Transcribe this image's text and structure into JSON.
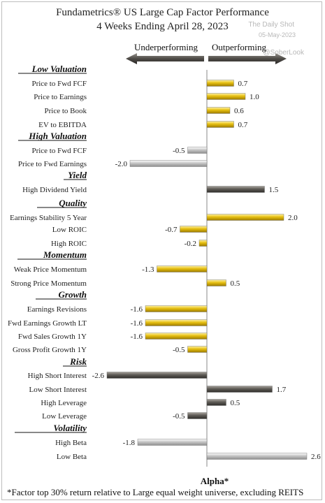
{
  "header": {
    "title_line1": "Fundametrics® US Large Cap Factor Performance",
    "title_line2": "4 Weeks Ending April 28, 2023"
  },
  "watermark": {
    "source": "The Daily Shot",
    "date": "05-May-2023",
    "handle": "@SoberLook"
  },
  "legend": {
    "left": "Underperforming",
    "right": "Outperforming"
  },
  "footnote": "*Factor top 30% return relative to Large equal weight universe, excluding REITS",
  "chart_data": {
    "type": "bar",
    "orientation": "horizontal",
    "xlabel": "Alpha*",
    "xlim": [
      -2.6,
      2.6
    ],
    "colors": {
      "gold": "#e0b400",
      "dark": "#5e5b56",
      "light": "#bdbdbd"
    },
    "groups": [
      {
        "name": "Low Valuation",
        "items": [
          {
            "label": "Price to Fwd FCF",
            "value": 0.7,
            "color": "gold"
          },
          {
            "label": "Price to Earnings",
            "value": 1.0,
            "color": "gold"
          },
          {
            "label": "Price to Book",
            "value": 0.6,
            "color": "gold"
          },
          {
            "label": "EV to EBITDA",
            "value": 0.7,
            "color": "gold"
          }
        ]
      },
      {
        "name": "High Valuation",
        "items": [
          {
            "label": "Price to Fwd FCF",
            "value": -0.5,
            "color": "light"
          },
          {
            "label": "Price to Fwd Earnings",
            "value": -2.0,
            "color": "light"
          }
        ]
      },
      {
        "name": "Yield",
        "items": [
          {
            "label": "High Dividend Yield",
            "value": 1.5,
            "color": "dark"
          }
        ]
      },
      {
        "name": "Quality",
        "items": [
          {
            "label": "Earnings Stability 5 Year",
            "value": 2.0,
            "color": "gold"
          },
          {
            "label": "Low ROIC",
            "value": -0.7,
            "color": "gold"
          },
          {
            "label": "High ROIC",
            "value": -0.2,
            "color": "gold"
          }
        ]
      },
      {
        "name": "Momentum",
        "items": [
          {
            "label": "Weak Price Momentum",
            "value": -1.3,
            "color": "gold"
          },
          {
            "label": "Strong Price Momentum",
            "value": 0.5,
            "color": "gold"
          }
        ]
      },
      {
        "name": "Growth",
        "items": [
          {
            "label": "Earnings Revisions",
            "value": -1.6,
            "color": "gold"
          },
          {
            "label": "Fwd Earnings Growth LT",
            "value": -1.6,
            "color": "gold"
          },
          {
            "label": "Fwd Sales Growth 1Y",
            "value": -1.6,
            "color": "gold"
          },
          {
            "label": "Gross Profit Growth 1Y",
            "value": -0.5,
            "color": "gold"
          }
        ]
      },
      {
        "name": "Risk",
        "items": [
          {
            "label": "High Short Interest",
            "value": -2.6,
            "color": "dark"
          },
          {
            "label": "Low Short Interest",
            "value": 1.7,
            "color": "dark"
          },
          {
            "label": "High Leverage",
            "value": 0.5,
            "color": "dark"
          },
          {
            "label": "Low Leverage",
            "value": -0.5,
            "color": "dark"
          }
        ]
      },
      {
        "name": "Volatility",
        "items": [
          {
            "label": "High Beta",
            "value": -1.8,
            "color": "light"
          },
          {
            "label": "Low Beta",
            "value": 2.6,
            "color": "light"
          }
        ]
      }
    ]
  }
}
